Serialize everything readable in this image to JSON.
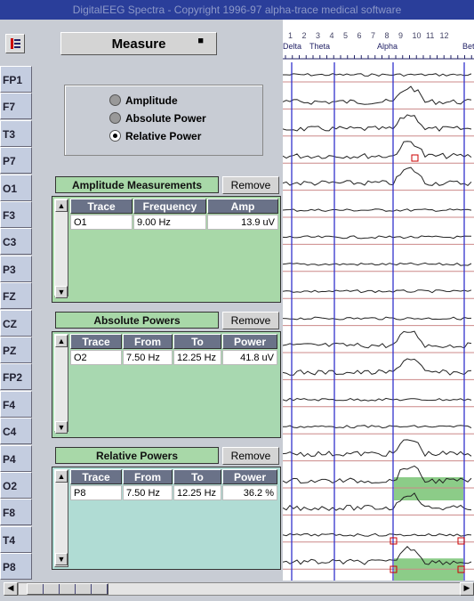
{
  "title_bar": "DigitalEEG Spectra - Copyright 1996-97 alpha-trace medical software",
  "toolbar": {
    "mode": "Measure"
  },
  "frequency_scale": {
    "numbers": [
      "1",
      "2",
      "3",
      "4",
      "5",
      "6",
      "7",
      "8",
      "9",
      "10",
      "11",
      "12"
    ],
    "bands": [
      "Delta",
      "Theta",
      "Alpha",
      "Beta"
    ]
  },
  "channels": [
    "FP1",
    "F7",
    "T3",
    "P7",
    "O1",
    "F3",
    "C3",
    "P3",
    "FZ",
    "CZ",
    "PZ",
    "FP2",
    "F4",
    "C4",
    "P4",
    "O2",
    "F8",
    "T4",
    "P8"
  ],
  "measure_options": {
    "options": [
      "Amplitude",
      "Absolute Power",
      "Relative Power"
    ],
    "selected": 2
  },
  "tables": [
    {
      "title": "Amplitude Measurements",
      "button": "Remove",
      "columns": [
        "Trace",
        "Frequency",
        "Amp"
      ],
      "rows": [
        [
          "O1",
          "9.00 Hz",
          "13.9 uV"
        ]
      ]
    },
    {
      "title": "Absolute Powers",
      "button": "Remove",
      "columns": [
        "Trace",
        "From",
        "To",
        "Power"
      ],
      "rows": [
        [
          "O2",
          "7.50 Hz",
          "12.25 Hz",
          "41.8 uV"
        ]
      ]
    },
    {
      "title": "Relative Powers",
      "button": "Remove",
      "columns": [
        "Trace",
        "From",
        "To",
        "Power"
      ],
      "rows": [
        [
          "P8",
          "7.50 Hz",
          "12.25 Hz",
          "36.2 %"
        ]
      ]
    }
  ]
}
